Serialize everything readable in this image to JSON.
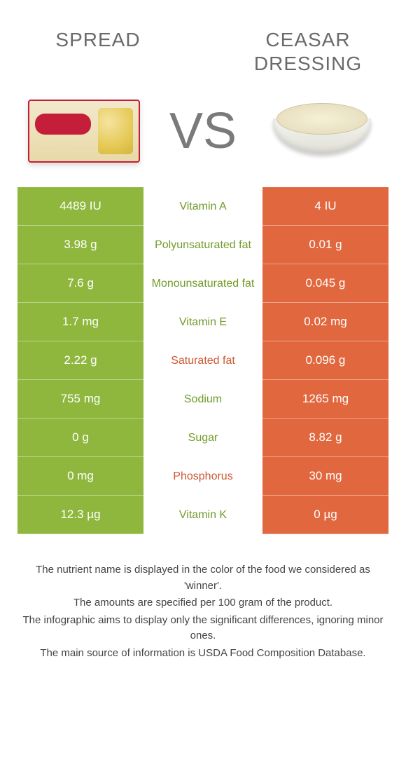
{
  "header": {
    "left_label": "SPREAD",
    "right_label": "CEASAR DRESSING",
    "vs_label": "VS"
  },
  "colors": {
    "left_col": "#8fb73e",
    "right_col": "#e1673f",
    "left_text": "#729b2a",
    "right_text": "#cc5834"
  },
  "rows": [
    {
      "left": "4489 IU",
      "nutrient": "Vitamin A",
      "right": "4 IU",
      "winner": "left"
    },
    {
      "left": "3.98 g",
      "nutrient": "Polyunsaturated fat",
      "right": "0.01 g",
      "winner": "left"
    },
    {
      "left": "7.6 g",
      "nutrient": "Monounsaturated fat",
      "right": "0.045 g",
      "winner": "left"
    },
    {
      "left": "1.7 mg",
      "nutrient": "Vitamin E",
      "right": "0.02 mg",
      "winner": "left"
    },
    {
      "left": "2.22 g",
      "nutrient": "Saturated fat",
      "right": "0.096 g",
      "winner": "right"
    },
    {
      "left": "755 mg",
      "nutrient": "Sodium",
      "right": "1265 mg",
      "winner": "left"
    },
    {
      "left": "0 g",
      "nutrient": "Sugar",
      "right": "8.82 g",
      "winner": "left"
    },
    {
      "left": "0 mg",
      "nutrient": "Phosphorus",
      "right": "30 mg",
      "winner": "right"
    },
    {
      "left": "12.3 µg",
      "nutrient": "Vitamin K",
      "right": "0 µg",
      "winner": "left"
    }
  ],
  "footer": {
    "line1": "The nutrient name is displayed in the color of the food we considered as 'winner'.",
    "line2": "The amounts are specified per 100 gram of the product.",
    "line3": "The infographic aims to display only the significant differences, ignoring minor ones.",
    "line4": "The main source of information is USDA Food Composition Database."
  }
}
